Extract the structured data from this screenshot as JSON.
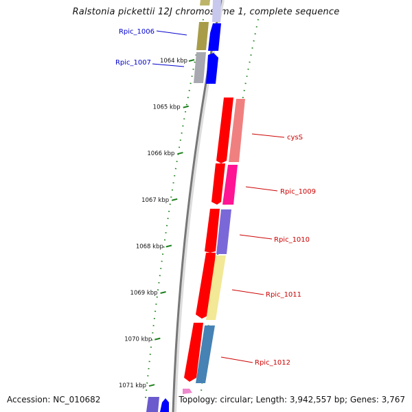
{
  "title": "Ralstonia pickettii 12J chromosome 1, complete sequence",
  "footer": {
    "accession": "Accession: NC_010682",
    "summary": "Topology: circular; Length: 3,942,557 bp; Genes: 3,767"
  },
  "ruler": [
    {
      "label": "1064 kbp",
      "kbp": 1064
    },
    {
      "label": "1065 kbp",
      "kbp": 1065
    },
    {
      "label": "1066 kbp",
      "kbp": 1066
    },
    {
      "label": "1067 kbp",
      "kbp": 1067
    },
    {
      "label": "1068 kbp",
      "kbp": 1068
    },
    {
      "label": "1069 kbp",
      "kbp": 1069
    },
    {
      "label": "1070 kbp",
      "kbp": 1070
    },
    {
      "label": "1071 kbp",
      "kbp": 1071
    }
  ],
  "genes": [
    {
      "name": "Rpic_1006",
      "color": "#0000cc"
    },
    {
      "name": "Rpic_1007",
      "color": "#0000cc"
    },
    {
      "name": "cysS",
      "color": "#cc0000"
    },
    {
      "name": "Rpic_1009",
      "color": "#cc0000"
    },
    {
      "name": "Rpic_1010",
      "color": "#cc0000"
    },
    {
      "name": "Rpic_1011",
      "color": "#cc0000"
    },
    {
      "name": "Rpic_1012",
      "color": "#cc0000"
    }
  ]
}
